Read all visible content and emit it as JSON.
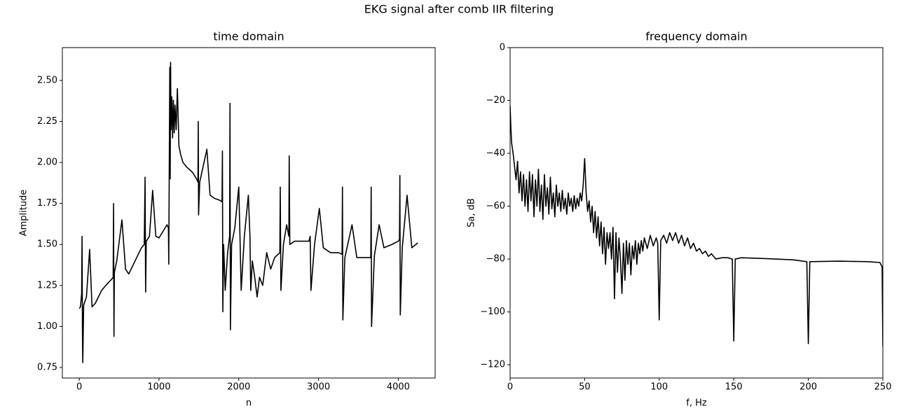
{
  "title": "EKG signal after comb IIR filtering",
  "chart_data": [
    {
      "type": "line",
      "title": "time domain",
      "xlabel": "n",
      "ylabel": "Amplitude",
      "color": "#000000",
      "x": [
        0,
        15,
        30,
        35,
        40,
        44,
        55,
        90,
        130,
        160,
        200,
        280,
        350,
        410,
        425,
        430,
        435,
        440,
        470,
        535,
        580,
        620,
        700,
        780,
        815,
        825,
        832,
        840,
        880,
        920,
        960,
        1000,
        1050,
        1100,
        1118,
        1122,
        1135,
        1140,
        1145,
        1150,
        1160,
        1170,
        1180,
        1190,
        1200,
        1215,
        1230,
        1250,
        1270,
        1300,
        1350,
        1420,
        1470,
        1488,
        1492,
        1496,
        1510,
        1600,
        1640,
        1700,
        1760,
        1790,
        1795,
        1800,
        1810,
        1830,
        1860,
        1885,
        1890,
        1895,
        1910,
        1950,
        2000,
        2015,
        2030,
        2070,
        2120,
        2140,
        2150,
        2170,
        2200,
        2230,
        2260,
        2300,
        2350,
        2400,
        2450,
        2515,
        2520,
        2528,
        2560,
        2600,
        2628,
        2632,
        2640,
        2700,
        2800,
        2880,
        2895,
        2905,
        2950,
        3010,
        3060,
        3150,
        3250,
        3295,
        3300,
        3305,
        3330,
        3420,
        3480,
        3580,
        3655,
        3660,
        3665,
        3700,
        3760,
        3820,
        3920,
        4000,
        4015,
        4020,
        4025,
        4050,
        4110,
        4170,
        4245
      ],
      "values": [
        1.11,
        1.12,
        1.2,
        1.55,
        0.95,
        0.78,
        1.13,
        1.18,
        1.47,
        1.12,
        1.14,
        1.22,
        1.26,
        1.29,
        1.3,
        1.75,
        0.94,
        1.33,
        1.4,
        1.65,
        1.35,
        1.32,
        1.4,
        1.48,
        1.5,
        1.91,
        1.21,
        1.52,
        1.55,
        1.83,
        1.55,
        1.54,
        1.58,
        1.62,
        1.6,
        1.38,
        2.58,
        1.9,
        2.61,
        2.2,
        2.4,
        2.15,
        2.38,
        2.18,
        2.35,
        2.2,
        2.45,
        2.1,
        2.05,
        2.0,
        1.97,
        1.94,
        1.9,
        1.88,
        2.25,
        1.68,
        1.88,
        2.08,
        1.8,
        1.78,
        1.77,
        1.76,
        2.07,
        1.09,
        1.5,
        1.22,
        1.45,
        1.55,
        2.36,
        0.98,
        1.5,
        1.6,
        1.85,
        1.55,
        1.22,
        1.55,
        1.8,
        1.55,
        1.22,
        1.4,
        1.3,
        1.18,
        1.3,
        1.25,
        1.45,
        1.35,
        1.42,
        1.45,
        1.85,
        1.22,
        1.5,
        1.62,
        1.55,
        2.04,
        1.5,
        1.52,
        1.52,
        1.52,
        1.55,
        1.22,
        1.5,
        1.72,
        1.48,
        1.45,
        1.45,
        1.44,
        1.85,
        1.04,
        1.42,
        1.62,
        1.42,
        1.42,
        1.42,
        1.85,
        1.0,
        1.43,
        1.62,
        1.48,
        1.5,
        1.52,
        1.53,
        1.92,
        1.07,
        1.48,
        1.8,
        1.48,
        1.51
      ],
      "xlim": [
        -212,
        4462
      ],
      "ylim": [
        0.686,
        2.7
      ],
      "xticks": [
        0,
        1000,
        2000,
        3000,
        4000
      ],
      "yticks": [
        {
          "value": 0.75,
          "label": "0.75"
        },
        {
          "value": 1.0,
          "label": "1.00"
        },
        {
          "value": 1.25,
          "label": "1.25"
        },
        {
          "value": 1.5,
          "label": "1.50"
        },
        {
          "value": 1.75,
          "label": "1.75"
        },
        {
          "value": 2.0,
          "label": "2.00"
        },
        {
          "value": 2.25,
          "label": "2.25"
        },
        {
          "value": 2.5,
          "label": "2.50"
        }
      ]
    },
    {
      "type": "line",
      "title": "frequency domain",
      "xlabel": "f, Hz",
      "ylabel": "Sa, dB",
      "color": "#000000",
      "x": [
        0,
        0.5,
        1,
        2,
        3,
        4,
        5,
        6,
        7,
        8,
        9,
        10,
        11,
        12,
        13,
        14,
        15,
        16,
        17,
        18,
        19,
        20,
        21,
        22,
        23,
        24,
        25,
        26,
        27,
        28,
        29,
        30,
        31,
        32,
        33,
        34,
        35,
        36,
        37,
        38,
        39,
        40,
        41,
        42,
        43,
        44,
        45,
        46,
        47,
        48,
        49,
        50,
        51,
        52,
        53,
        54,
        55,
        56,
        57,
        58,
        59,
        60,
        61,
        62,
        63,
        64,
        65,
        66,
        67,
        68,
        69,
        70,
        71,
        72,
        73,
        74,
        75,
        76,
        77,
        78,
        79,
        80,
        81,
        82,
        83,
        84,
        85,
        86,
        87,
        88,
        89,
        90,
        92,
        94,
        96,
        98,
        99,
        100,
        101,
        103,
        105,
        107,
        109,
        111,
        113,
        115,
        117,
        119,
        121,
        123,
        125,
        127,
        129,
        131,
        133,
        135,
        138,
        142,
        146,
        149,
        150,
        151,
        155,
        170,
        190,
        199,
        200,
        201,
        220,
        240,
        248,
        249.5,
        250
      ],
      "values": [
        -22,
        -30,
        -36,
        -40,
        -45,
        -50,
        -43,
        -55,
        -47,
        -58,
        -48,
        -60,
        -50,
        -62,
        -47,
        -58,
        -48,
        -64,
        -50,
        -60,
        -46,
        -62,
        -52,
        -65,
        -48,
        -60,
        -53,
        -63,
        -49,
        -61,
        -55,
        -64,
        -52,
        -60,
        -55,
        -62,
        -54,
        -61,
        -57,
        -63,
        -55,
        -60,
        -57,
        -62,
        -56,
        -61,
        -57,
        -60,
        -55,
        -58,
        -52,
        -42,
        -55,
        -62,
        -58,
        -66,
        -60,
        -70,
        -62,
        -72,
        -64,
        -75,
        -66,
        -78,
        -68,
        -82,
        -70,
        -76,
        -70,
        -80,
        -68,
        -95,
        -70,
        -85,
        -72,
        -80,
        -93,
        -74,
        -88,
        -73,
        -82,
        -74,
        -86,
        -75,
        -80,
        -73,
        -82,
        -74,
        -78,
        -73,
        -77,
        -72,
        -76,
        -71,
        -75,
        -72,
        -74,
        -103,
        -73,
        -71,
        -74,
        -70,
        -73,
        -70,
        -74,
        -71,
        -75,
        -72,
        -76,
        -74,
        -77,
        -76,
        -78,
        -77,
        -79,
        -78,
        -80,
        -79.5,
        -79.5,
        -80,
        -111,
        -80,
        -79.5,
        -79.8,
        -80.3,
        -81,
        -112,
        -81,
        -80.8,
        -81,
        -81.3,
        -83,
        -113
      ],
      "xlim": [
        0,
        250
      ],
      "ylim": [
        -125,
        0
      ],
      "xticks": [
        0,
        50,
        100,
        150,
        200,
        250
      ],
      "yticks": [
        0,
        {
          "value": -20,
          "label": "−20"
        },
        {
          "value": -40,
          "label": "−40"
        },
        {
          "value": -60,
          "label": "−60"
        },
        {
          "value": -80,
          "label": "−80"
        },
        {
          "value": -100,
          "label": "−100"
        },
        {
          "value": -120,
          "label": "−120"
        }
      ]
    }
  ]
}
